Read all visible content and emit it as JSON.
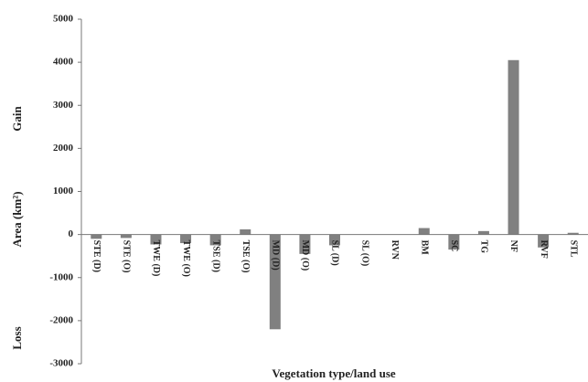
{
  "chart_data": {
    "type": "bar",
    "x_label": "Vegetation type/land use",
    "y_label": "Area (km²)",
    "annotations": [
      "Gain",
      "Loss"
    ],
    "categories": [
      "STE (D)",
      "STE (O)",
      "TWE (D)",
      "TWE (O)",
      "TSE (D)",
      "TSE (O)",
      "MD (D)",
      "MD (O)",
      "SL (D)",
      "SL (O)",
      "RVN",
      "BM",
      "SC",
      "TG",
      "NF",
      "RVF",
      "STL"
    ],
    "values": [
      -100,
      -80,
      -230,
      -200,
      -250,
      120,
      -2200,
      -450,
      -250,
      0,
      0,
      150,
      -350,
      80,
      4050,
      -300,
      40
    ],
    "color": "#808080",
    "ylim": [
      -3000,
      5000
    ],
    "yticks": [
      -3000,
      -2000,
      -1000,
      0,
      1000,
      2000,
      3000,
      4000,
      5000
    ],
    "grid": false
  }
}
